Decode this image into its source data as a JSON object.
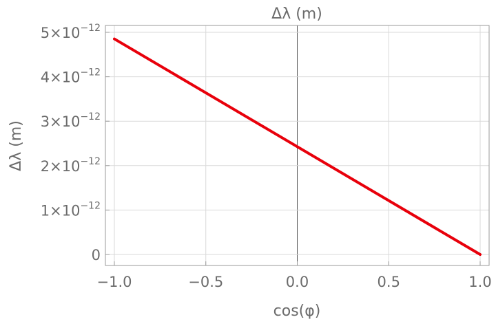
{
  "chart_data": {
    "type": "line",
    "title": "Δλ (m)",
    "xlabel": "cos(φ)",
    "ylabel": "Δλ (m)",
    "xlim": [
      -1.0,
      1.0
    ],
    "ylim": [
      0,
      5e-12
    ],
    "grid": true,
    "x_ticks": [
      {
        "value": -1.0,
        "label": "−1.0"
      },
      {
        "value": -0.5,
        "label": "−0.5"
      },
      {
        "value": 0.0,
        "label": "0.0"
      },
      {
        "value": 0.5,
        "label": "0.5"
      },
      {
        "value": 1.0,
        "label": "1.0"
      }
    ],
    "y_ticks": [
      {
        "value": 0,
        "mantissa": "0",
        "exponent": ""
      },
      {
        "value": 1e-12,
        "mantissa": "1×10",
        "exponent": "−12"
      },
      {
        "value": 2e-12,
        "mantissa": "2×10",
        "exponent": "−12"
      },
      {
        "value": 3e-12,
        "mantissa": "3×10",
        "exponent": "−12"
      },
      {
        "value": 4e-12,
        "mantissa": "4×10",
        "exponent": "−12"
      },
      {
        "value": 5e-12,
        "mantissa": "5×10",
        "exponent": "−12"
      }
    ],
    "series": [
      {
        "color": "#e8000b",
        "x": [
          -1.0,
          1.0
        ],
        "y": [
          4.852e-12,
          0
        ]
      }
    ]
  }
}
